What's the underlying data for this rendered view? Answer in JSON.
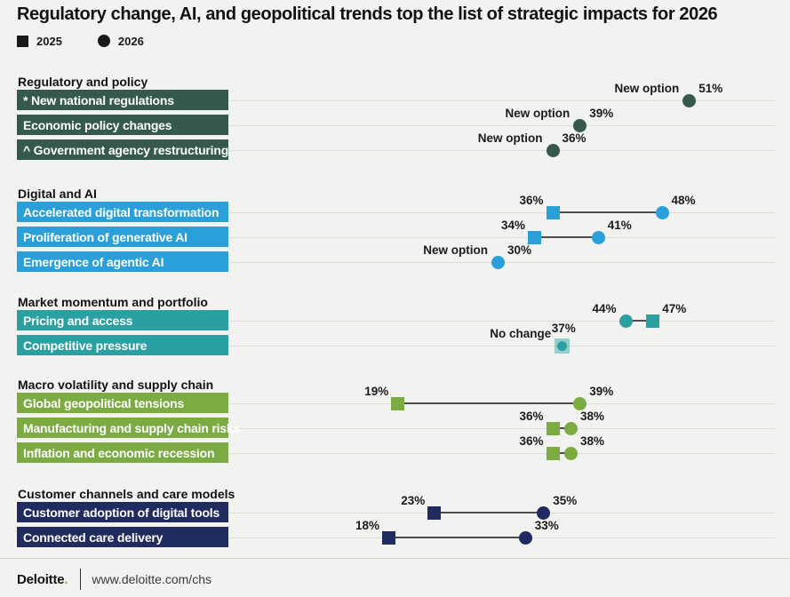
{
  "title": "Regulatory change, AI, and geopolitical trends top the list of strategic impacts for 2026",
  "legend": {
    "items": [
      {
        "label": "2025",
        "marker": "square"
      },
      {
        "label": "2026",
        "marker": "circle"
      }
    ]
  },
  "colors": {
    "background": "#f2f2f0",
    "gridline": "#dcdcd8",
    "connector": "#4d4d4d",
    "legend_marker": "#1a1a1a",
    "regulatory_green": "#35594a",
    "digital_blue": "#2b9fd9",
    "market_teal": "#2aa0a2",
    "macro_olive": "#7cab41",
    "customer_navy": "#202b5f",
    "brand_dot_green": "#86bc25"
  },
  "chart_data": {
    "type": "scatter",
    "subtype": "dumbbell",
    "title": "Regulatory change, AI, and geopolitical trends top the list of strategic impacts for 2026",
    "x_scale": {
      "min": 0,
      "max": 60,
      "unit": "%"
    },
    "grid": true,
    "legend_position": "top-left",
    "series_keys": [
      "2025",
      "2026"
    ],
    "sections": [
      {
        "name": "Regulatory and policy",
        "color": "#35594a",
        "rows": [
          {
            "label": "* New national regulations",
            "note": "New option",
            "v2025": null,
            "v2026": 51
          },
          {
            "label": "Economic policy changes",
            "note": "New option",
            "v2025": null,
            "v2026": 39
          },
          {
            "label": "^ Government agency restructuring",
            "note": "New option",
            "v2025": null,
            "v2026": 36
          }
        ]
      },
      {
        "name": "Digital and AI",
        "color": "#2b9fd9",
        "rows": [
          {
            "label": "Accelerated digital transformation",
            "note": null,
            "v2025": 36,
            "v2026": 48
          },
          {
            "label": "Proliferation of generative AI",
            "note": null,
            "v2025": 34,
            "v2026": 41
          },
          {
            "label": "Emergence of agentic AI",
            "note": "New option",
            "v2025": null,
            "v2026": 30
          }
        ]
      },
      {
        "name": "Market momentum and portfolio",
        "color": "#2aa0a2",
        "rows": [
          {
            "label": "Pricing and access",
            "note": null,
            "v2025": 47,
            "v2026": 44
          },
          {
            "label": "Competitive pressure",
            "note": "No change",
            "v2025": 37,
            "v2026": 37,
            "overlap": true
          }
        ]
      },
      {
        "name": "Macro volatility and supply chain",
        "color": "#7cab41",
        "rows": [
          {
            "label": "Global geopolitical tensions",
            "note": null,
            "v2025": 19,
            "v2026": 39
          },
          {
            "label": "Manufacturing and supply chain risks",
            "note": null,
            "v2025": 36,
            "v2026": 38
          },
          {
            "label": "Inflation and economic recession",
            "note": null,
            "v2025": 36,
            "v2026": 38
          }
        ]
      },
      {
        "name": "Customer channels and care models",
        "color": "#202b5f",
        "rows": [
          {
            "label": "Customer adoption of digital tools",
            "note": null,
            "v2025": 23,
            "v2026": 35
          },
          {
            "label": "Connected care delivery",
            "note": null,
            "v2025": 18,
            "v2026": 33
          }
        ]
      }
    ]
  },
  "footer": {
    "brand": "Deloitte",
    "brand_dot": ".",
    "url": "www.deloitte.com/chs"
  }
}
